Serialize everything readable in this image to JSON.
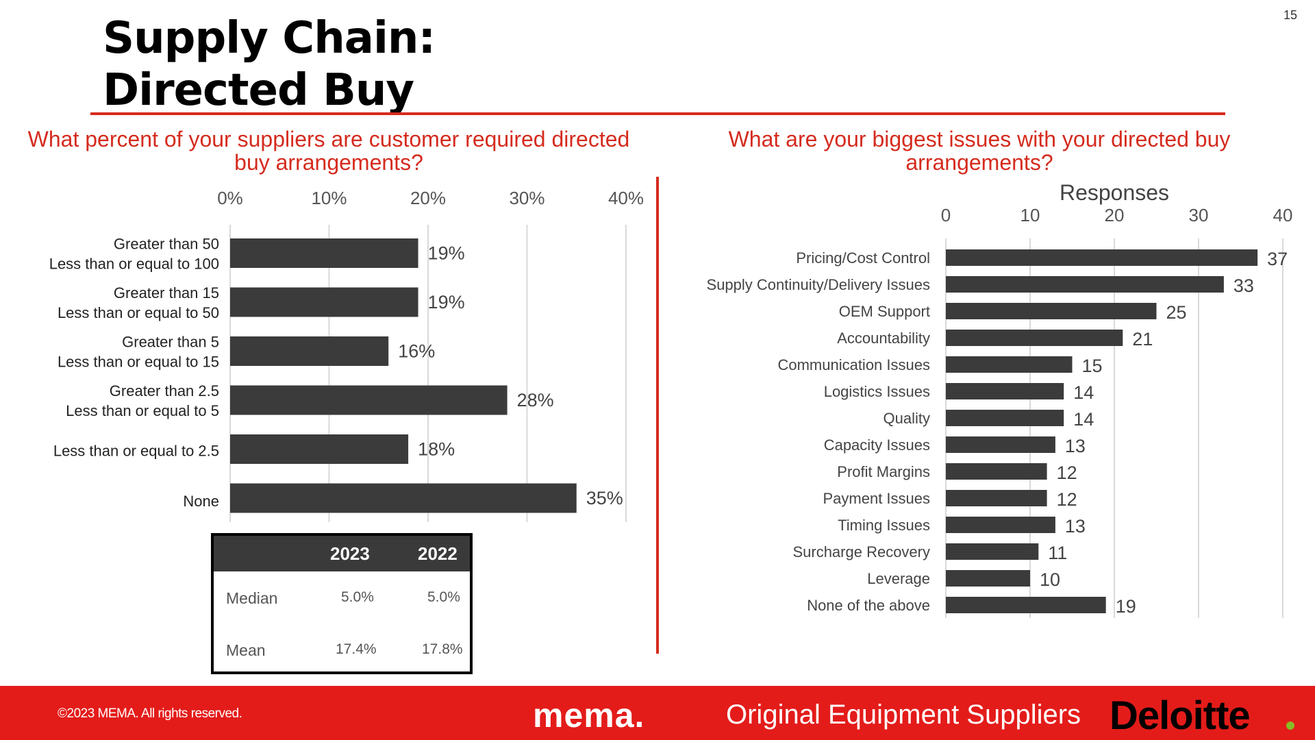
{
  "page_number": "15",
  "title_line1": "Supply Chain:",
  "title_line2": "Directed Buy",
  "colors": {
    "accent": "#d52b1e",
    "bar": "#3b3b3b",
    "footer": "#e31c1a",
    "deloitte_dot": "#86bc25"
  },
  "chart_data": [
    {
      "type": "bar",
      "orientation": "horizontal",
      "title": "What percent of your suppliers are customer required directed buy arrangements?",
      "categories": [
        [
          "Greater than 50",
          "Less than or equal to 100"
        ],
        [
          "Greater than 15",
          "Less than or equal to 50"
        ],
        [
          "Greater than 5",
          "Less than or equal to 15"
        ],
        [
          "Greater than 2.5",
          "Less than or equal to 5"
        ],
        [
          "Less than or equal to 2.5"
        ],
        [
          "None"
        ]
      ],
      "values": [
        19,
        19,
        16,
        28,
        18,
        35
      ],
      "value_labels": [
        "19%",
        "19%",
        "16%",
        "28%",
        "18%",
        "35%"
      ],
      "xlim": [
        0,
        40
      ],
      "ticks": [
        0,
        10,
        20,
        30,
        40
      ],
      "tick_labels": [
        "0%",
        "10%",
        "20%",
        "30%",
        "40%"
      ],
      "axis_position": "top",
      "grid": true
    },
    {
      "type": "bar",
      "orientation": "horizontal",
      "title": "What are your biggest issues with your directed buy arrangements?",
      "xlabel": "Responses",
      "categories": [
        "Pricing/Cost Control",
        "Supply Continuity/Delivery Issues",
        "OEM Support",
        "Accountability",
        "Communication Issues",
        "Logistics Issues",
        "Quality",
        "Capacity Issues",
        "Profit Margins",
        "Payment Issues",
        "Timing Issues",
        "Surcharge Recovery",
        "Leverage",
        "None of the above"
      ],
      "values": [
        37,
        33,
        25,
        21,
        15,
        14,
        14,
        13,
        12,
        12,
        13,
        11,
        10,
        19
      ],
      "xlim": [
        0,
        40
      ],
      "ticks": [
        0,
        10,
        20,
        30,
        40
      ],
      "tick_labels": [
        "0",
        "10",
        "20",
        "30",
        "40"
      ],
      "axis_position": "top",
      "grid": true
    }
  ],
  "stats_table": {
    "headers": [
      "2023",
      "2022"
    ],
    "rows": [
      {
        "label": "Median",
        "v2023": "5.0%",
        "v2022": "5.0%"
      },
      {
        "label": "Mean",
        "v2023": "17.4%",
        "v2022": "17.8%"
      }
    ]
  },
  "footer": {
    "copyright": "©2023 MEMA. All rights reserved.",
    "mema_logo": "mema.",
    "tagline": "Original Equipment Suppliers",
    "deloitte": "Deloitte"
  }
}
